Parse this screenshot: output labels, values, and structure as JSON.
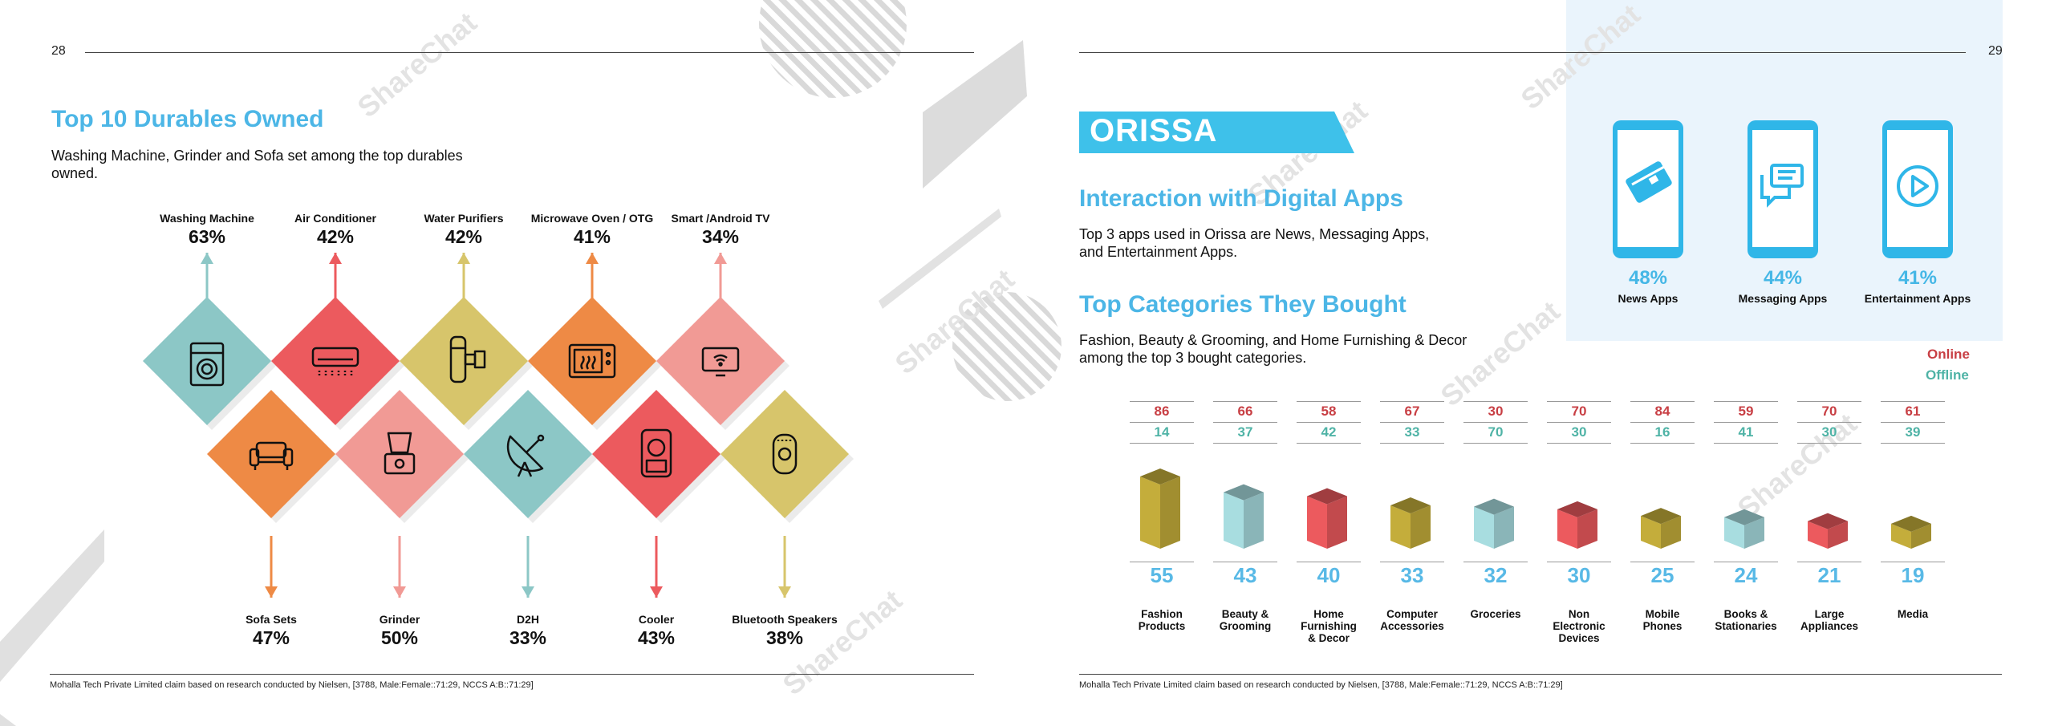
{
  "left": {
    "page_number": "28",
    "title": "Top 10 Durables Owned",
    "subtitle": "Washing Machine, Grinder and  Sofa set among the top durables owned.",
    "top_items": [
      {
        "name": "Washing Machine",
        "pct": "63%",
        "color": "#8cc7c6",
        "icon": "washing-machine-icon"
      },
      {
        "name": "Air Conditioner",
        "pct": "42%",
        "color": "#ec5a5e",
        "icon": "air-conditioner-icon"
      },
      {
        "name": "Water Purifiers",
        "pct": "42%",
        "color": "#d7c56b",
        "icon": "water-purifier-icon"
      },
      {
        "name": "Microwave Oven / OTG",
        "pct": "41%",
        "color": "#ee8a45",
        "icon": "microwave-icon"
      },
      {
        "name": "Smart /Android TV",
        "pct": "34%",
        "color": "#f19a95",
        "icon": "tv-icon"
      }
    ],
    "bottom_items": [
      {
        "name": "Sofa Sets",
        "pct": "47%",
        "color": "#ee8a45",
        "icon": "sofa-icon"
      },
      {
        "name": "Grinder",
        "pct": "50%",
        "color": "#f19a95",
        "icon": "grinder-icon"
      },
      {
        "name": "D2H",
        "pct": "33%",
        "color": "#8cc7c6",
        "icon": "dish-antenna-icon"
      },
      {
        "name": "Cooler",
        "pct": "43%",
        "color": "#ec5a5e",
        "icon": "cooler-icon"
      },
      {
        "name": "Bluetooth Speakers",
        "pct": "38%",
        "color": "#d7c56b",
        "icon": "speaker-icon"
      }
    ],
    "footnote": "Mohalla Tech Private Limited claim based on research conducted by Nielsen, [3788, Male:Female::71:29, NCCS A:B::71:29]"
  },
  "right": {
    "page_number": "29",
    "state_banner": "ORISSA",
    "section1_title": "Interaction with Digital Apps",
    "section1_text": "Top 3 apps used in Orissa are News, Messaging Apps, and Entertainment Apps.",
    "apps": [
      {
        "pct": "48%",
        "name": "News Apps",
        "icon": "news-card-icon"
      },
      {
        "pct": "44%",
        "name": "Messaging Apps",
        "icon": "chat-bubbles-icon"
      },
      {
        "pct": "41%",
        "name": "Entertainment Apps",
        "icon": "play-icon"
      }
    ],
    "section2_title": "Top Categories They Bought",
    "section2_text": "Fashion, Beauty & Grooming, and Home Furnishing & Decor among the top 3 bought categories.",
    "legend_online": "Online",
    "legend_offline": "Offline",
    "footnote": "Mohalla Tech Private Limited claim based on research conducted by Nielsen, [3788, Male:Female::71:29, NCCS A:B::71:29]"
  },
  "chart_data": {
    "type": "bar",
    "categories": [
      "Fashion Products",
      "Beauty & Grooming",
      "Home Furnishing & Decor",
      "Computer Accessories",
      "Groceries",
      "Non Electronic Devices",
      "Mobile Phones",
      "Books & Stationaries",
      "Large Appliances",
      "Media"
    ],
    "label_lines": [
      [
        "Fashion",
        "Products"
      ],
      [
        "Beauty &",
        "Grooming"
      ],
      [
        "Home",
        "Furnishing",
        "& Decor"
      ],
      [
        "Computer",
        "Accessories"
      ],
      [
        "Groceries"
      ],
      [
        "Non",
        "Electronic",
        "Devices"
      ],
      [
        "Mobile",
        "Phones"
      ],
      [
        "Books &",
        "Stationaries"
      ],
      [
        "Large",
        "Appliances"
      ],
      [
        "Media"
      ]
    ],
    "series": [
      {
        "name": "Online",
        "values": [
          86,
          66,
          58,
          67,
          30,
          70,
          84,
          59,
          70,
          61
        ]
      },
      {
        "name": "Offline",
        "values": [
          14,
          37,
          42,
          33,
          70,
          30,
          16,
          41,
          30,
          39
        ]
      }
    ],
    "totals": [
      55,
      43,
      40,
      33,
      32,
      30,
      25,
      24,
      21,
      19
    ],
    "box_colors": [
      "#c4ad3b",
      "#a8dde0",
      "#ec5a5e",
      "#c4ad3b",
      "#a8dde0",
      "#ec5a5e",
      "#c4ad3b",
      "#a8dde0",
      "#ec5a5e",
      "#c4ad3b"
    ],
    "online_color": "#c83f44",
    "offline_color": "#4fb3a6"
  }
}
